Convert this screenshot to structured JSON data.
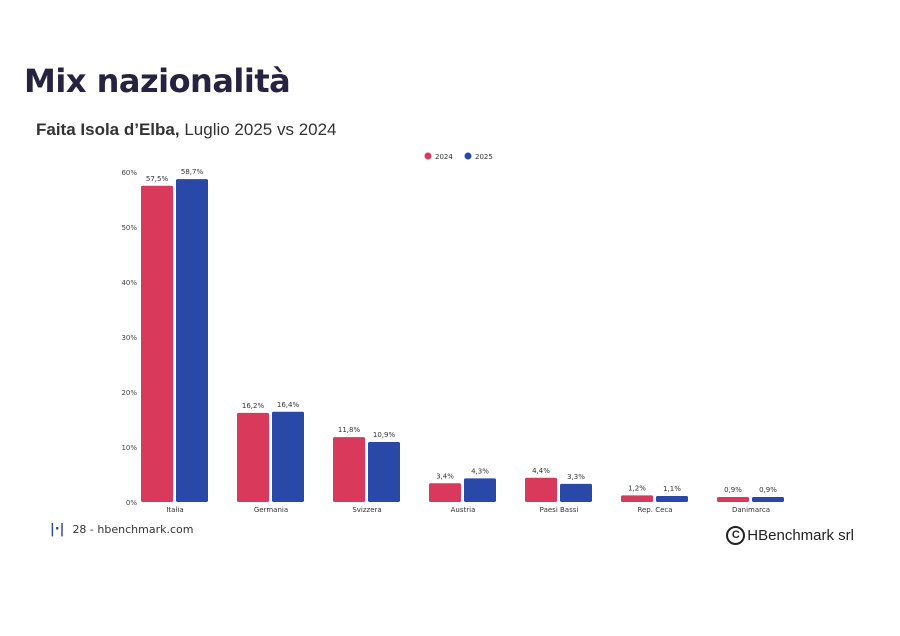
{
  "title": "Mix nazionalità",
  "subtitle_bold": "Faita Isola d’Elba,",
  "subtitle_rest": " Luglio 2025 vs 2024",
  "footer": {
    "page": "28 - hbenchmark.com",
    "copyright_symbol": "C",
    "copyright": "HBenchmark srl",
    "logo_icon": "bar-logo-icon"
  },
  "colors": {
    "s2024": "#d9395a",
    "s2025": "#2a48a8",
    "title": "#25233f"
  },
  "chart_data": {
    "type": "bar",
    "categories": [
      "Italia",
      "Germania",
      "Svizzera",
      "Austria",
      "Paesi Bassi",
      "Rep. Ceca",
      "Danimarca"
    ],
    "series": [
      {
        "name": "2024",
        "values": [
          57.5,
          16.2,
          11.8,
          3.4,
          4.4,
          1.2,
          0.9
        ],
        "labels": [
          "57,5%",
          "16,2%",
          "11,8%",
          "3,4%",
          "4,4%",
          "1,2%",
          "0,9%"
        ]
      },
      {
        "name": "2025",
        "values": [
          58.7,
          16.4,
          10.9,
          4.3,
          3.3,
          1.1,
          0.9
        ],
        "labels": [
          "58,7%",
          "16,4%",
          "10,9%",
          "4,3%",
          "3,3%",
          "1,1%",
          "0,9%"
        ]
      }
    ],
    "yticks": [
      "0%",
      "10%",
      "20%",
      "30%",
      "40%",
      "50%",
      "60%"
    ],
    "ylim": [
      0,
      60
    ],
    "grid": false,
    "legend": "top-right"
  }
}
